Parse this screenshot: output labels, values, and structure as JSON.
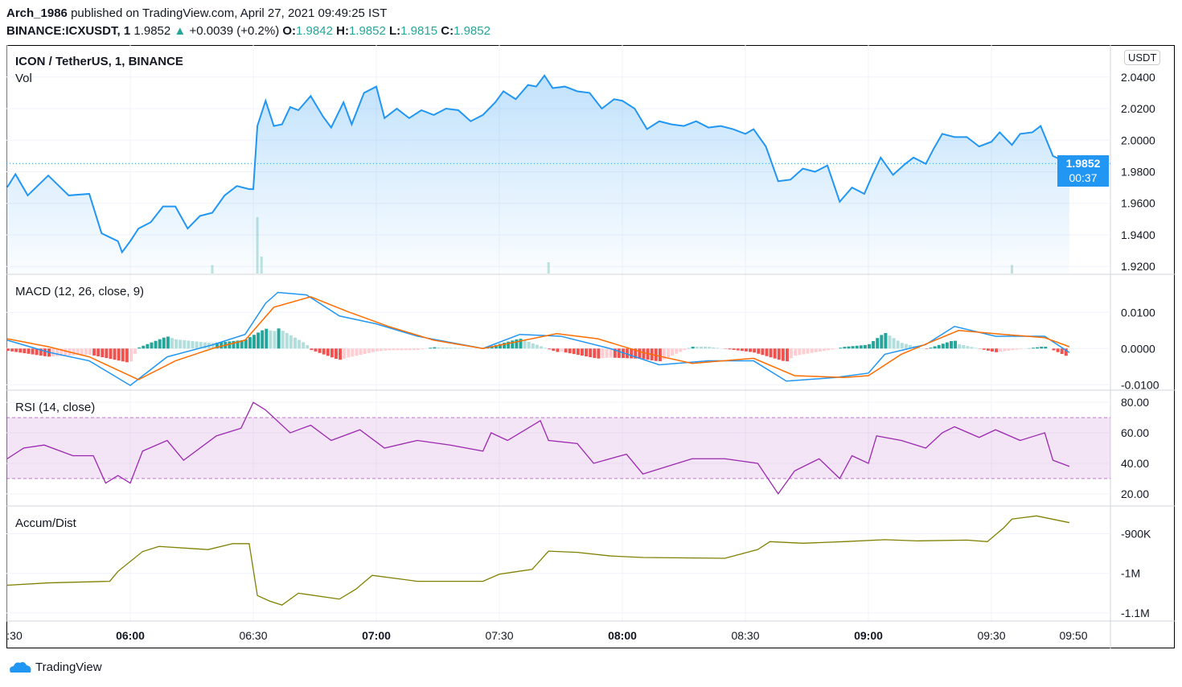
{
  "header": {
    "author": "Arch_1986",
    "published": "published on TradingView.com, April 27, 2021 09:49:25 IST",
    "symbol": "BINANCE:ICXUSDT, 1",
    "last": "1.9852",
    "change": "+0.0039 (+0.2%)",
    "up_icon": "triangle-up-icon",
    "o_label": "O:",
    "o": "1.9842",
    "h_label": "H:",
    "h": "1.9852",
    "l_label": "L:",
    "l": "1.9815",
    "c_label": "C:",
    "c": "1.9852"
  },
  "brand": "TradingView",
  "colors": {
    "price": "#2196f3",
    "macd": "#2196f3",
    "signal": "#ff6d00",
    "rsi": "#9c27b0",
    "ad": "#808000",
    "up": "#26a69a",
    "down": "#ef5350"
  },
  "chart_data": [
    {
      "type": "area",
      "title": "ICON / TetherUS, 1, BINANCE",
      "sublabel": "Vol",
      "currency": "USDT",
      "ylim": [
        1.915,
        2.045
      ],
      "yticks": [
        "2.0400",
        "2.0200",
        "2.0000",
        "1.9800",
        "1.9600",
        "1.9400",
        "1.9200"
      ],
      "last_price": "1.9852",
      "countdown": "00:37",
      "x": [
        "05:30",
        "05:32",
        "05:35",
        "05:40",
        "05:45",
        "05:50",
        "05:53",
        "05:57",
        "05:58",
        "06:00",
        "06:02",
        "06:05",
        "06:08",
        "06:11",
        "06:14",
        "06:17",
        "06:20",
        "06:23",
        "06:26",
        "06:29",
        "06:30",
        "06:31",
        "06:33",
        "06:35",
        "06:37",
        "06:39",
        "06:41",
        "06:44",
        "06:47",
        "06:49",
        "06:52",
        "06:54",
        "06:57",
        "07:00",
        "07:02",
        "07:05",
        "07:08",
        "07:11",
        "07:14",
        "07:17",
        "07:20",
        "07:23",
        "07:26",
        "07:29",
        "07:31",
        "07:34",
        "07:37",
        "07:39",
        "07:41",
        "07:43",
        "07:46",
        "07:49",
        "07:52",
        "07:55",
        "07:58",
        "08:00",
        "08:03",
        "08:06",
        "08:09",
        "08:12",
        "08:15",
        "08:18",
        "08:21",
        "08:24",
        "08:27",
        "08:30",
        "08:32",
        "08:35",
        "08:38",
        "08:41",
        "08:44",
        "08:47",
        "08:50",
        "08:53",
        "08:56",
        "08:59",
        "09:01",
        "09:03",
        "09:06",
        "09:09",
        "09:11",
        "09:14",
        "09:16",
        "09:18",
        "09:21",
        "09:24",
        "09:27",
        "09:30",
        "09:32",
        "09:35",
        "09:37",
        "09:40",
        "09:42",
        "09:45",
        "09:49"
      ],
      "values": [
        1.9702,
        1.9785,
        1.965,
        1.9776,
        1.965,
        1.966,
        1.941,
        1.936,
        1.929,
        1.936,
        1.944,
        1.948,
        1.958,
        1.958,
        1.944,
        1.952,
        1.954,
        1.965,
        1.971,
        1.969,
        1.969,
        2.009,
        2.025,
        2.009,
        2.01,
        2.021,
        2.019,
        2.028,
        2.015,
        2.008,
        2.024,
        2.01,
        2.03,
        2.034,
        2.014,
        2.02,
        2.014,
        2.019,
        2.016,
        2.02,
        2.019,
        2.012,
        2.016,
        2.024,
        2.031,
        2.026,
        2.035,
        2.034,
        2.041,
        2.033,
        2.034,
        2.031,
        2.03,
        2.02,
        2.026,
        2.025,
        2.02,
        2.007,
        2.012,
        2.01,
        2.009,
        2.012,
        2.008,
        2.009,
        2.007,
        2.004,
        2.007,
        1.996,
        1.974,
        1.975,
        1.982,
        1.98,
        1.984,
        1.961,
        1.97,
        1.966,
        1.978,
        1.989,
        1.978,
        1.985,
        1.989,
        1.985,
        1.995,
        2.004,
        2.002,
        2.002,
        1.996,
        1.999,
        2.005,
        1.997,
        2.004,
        2.005,
        2.009,
        1.99,
        1.9852
      ],
      "volume_spikes_relative": [
        [
          "06:31",
          1.0
        ],
        [
          "06:32",
          0.3
        ],
        [
          "07:42",
          0.2
        ],
        [
          "09:35",
          0.15
        ],
        [
          "06:20",
          0.15
        ]
      ]
    },
    {
      "type": "line",
      "title": "MACD (12, 26, close, 9)",
      "ylim": [
        -0.0115,
        0.0205
      ],
      "yticks": [
        "0.0100",
        "0.0000",
        "-0.0100"
      ],
      "series": [
        {
          "key": "macd",
          "points": [
            [
              "05:30",
              0.0023
            ],
            [
              "05:40",
              -0.001
            ],
            [
              "05:50",
              -0.0034
            ],
            [
              "06:00",
              -0.0102
            ],
            [
              "06:09",
              -0.0023
            ],
            [
              "06:20",
              0.001
            ],
            [
              "06:28",
              0.0039
            ],
            [
              "06:33",
              0.0125
            ],
            [
              "06:36",
              0.0155
            ],
            [
              "06:43",
              0.0148
            ],
            [
              "06:51",
              0.009
            ],
            [
              "07:00",
              0.0068
            ],
            [
              "07:10",
              0.0034
            ],
            [
              "07:26",
              0
            ],
            [
              "07:35",
              0.0039
            ],
            [
              "07:45",
              0.0034
            ],
            [
              "07:57",
              0
            ],
            [
              "08:09",
              -0.0045
            ],
            [
              "08:21",
              -0.0034
            ],
            [
              "08:32",
              -0.0034
            ],
            [
              "08:40",
              -0.009
            ],
            [
              "08:52",
              -0.008
            ],
            [
              "09:00",
              -0.0068
            ],
            [
              "09:04",
              -0.0016
            ],
            [
              "09:14",
              0.0011
            ],
            [
              "09:21",
              0.0061
            ],
            [
              "09:31",
              0.0034
            ],
            [
              "09:43",
              0.0034
            ],
            [
              "09:49",
              -0.0011
            ]
          ]
        },
        {
          "key": "signal",
          "points": [
            [
              "05:30",
              0.0027
            ],
            [
              "05:40",
              0.0005
            ],
            [
              "05:50",
              -0.0023
            ],
            [
              "06:02",
              -0.0086
            ],
            [
              "06:11",
              -0.0034
            ],
            [
              "06:20",
              0
            ],
            [
              "06:28",
              0.0023
            ],
            [
              "06:35",
              0.0114
            ],
            [
              "06:44",
              0.0143
            ],
            [
              "06:53",
              0.0102
            ],
            [
              "07:03",
              0.0061
            ],
            [
              "07:14",
              0.0023
            ],
            [
              "07:26",
              0
            ],
            [
              "07:44",
              0.0041
            ],
            [
              "07:54",
              0.0027
            ],
            [
              "08:05",
              -0.0011
            ],
            [
              "08:17",
              -0.0041
            ],
            [
              "08:32",
              -0.0027
            ],
            [
              "08:42",
              -0.0075
            ],
            [
              "08:54",
              -0.008
            ],
            [
              "09:00",
              -0.0075
            ],
            [
              "09:08",
              -0.0016
            ],
            [
              "09:22",
              0.005
            ],
            [
              "09:33",
              0.0039
            ],
            [
              "09:43",
              0.003
            ],
            [
              "09:49",
              0.0005
            ]
          ]
        }
      ]
    },
    {
      "type": "line",
      "title": "RSI (14, close)",
      "ylim": [
        12,
        88
      ],
      "band": [
        30,
        70
      ],
      "yticks": [
        "80.00",
        "60.00",
        "40.00",
        "20.00"
      ],
      "points": [
        [
          "05:30",
          43
        ],
        [
          "05:34",
          50
        ],
        [
          "05:39",
          52
        ],
        [
          "05:46",
          45
        ],
        [
          "05:51",
          45
        ],
        [
          "05:54",
          27
        ],
        [
          "05:57",
          32
        ],
        [
          "06:00",
          27
        ],
        [
          "06:03",
          48
        ],
        [
          "06:09",
          55
        ],
        [
          "06:13",
          42
        ],
        [
          "06:21",
          58
        ],
        [
          "06:27",
          63
        ],
        [
          "06:30",
          80
        ],
        [
          "06:33",
          75
        ],
        [
          "06:39",
          60
        ],
        [
          "06:44",
          65
        ],
        [
          "06:49",
          55
        ],
        [
          "06:56",
          62
        ],
        [
          "07:02",
          50
        ],
        [
          "07:10",
          55
        ],
        [
          "07:18",
          52
        ],
        [
          "07:26",
          48
        ],
        [
          "07:28",
          60
        ],
        [
          "07:32",
          55
        ],
        [
          "07:40",
          68
        ],
        [
          "07:42",
          55
        ],
        [
          "07:49",
          53
        ],
        [
          "07:53",
          40
        ],
        [
          "08:01",
          46
        ],
        [
          "08:05",
          33
        ],
        [
          "08:17",
          43
        ],
        [
          "08:25",
          43
        ],
        [
          "08:33",
          40
        ],
        [
          "08:38",
          20
        ],
        [
          "08:42",
          35
        ],
        [
          "08:48",
          43
        ],
        [
          "08:53",
          30
        ],
        [
          "08:56",
          45
        ],
        [
          "09:00",
          40
        ],
        [
          "09:02",
          58
        ],
        [
          "09:08",
          55
        ],
        [
          "09:14",
          50
        ],
        [
          "09:18",
          60
        ],
        [
          "09:21",
          64
        ],
        [
          "09:27",
          57
        ],
        [
          "09:31",
          62
        ],
        [
          "09:37",
          55
        ],
        [
          "09:43",
          60
        ],
        [
          "09:45",
          42
        ],
        [
          "09:49",
          38
        ]
      ]
    },
    {
      "type": "line",
      "title": "Accum/Dist",
      "ylim": [
        -1100000,
        -830000
      ],
      "yticks": [
        "-900K",
        "-1M",
        "-1.1M"
      ],
      "points": [
        [
          "05:30",
          -1030000
        ],
        [
          "05:40",
          -1024000
        ],
        [
          "05:55",
          -1020000
        ],
        [
          "05:57",
          -995000
        ],
        [
          "06:03",
          -945000
        ],
        [
          "06:07",
          -932000
        ],
        [
          "06:19",
          -940000
        ],
        [
          "06:25",
          -925000
        ],
        [
          "06:29",
          -925000
        ],
        [
          "06:31",
          -1056000
        ],
        [
          "06:34",
          -1070000
        ],
        [
          "06:37",
          -1080000
        ],
        [
          "06:41",
          -1050000
        ],
        [
          "06:51",
          -1065000
        ],
        [
          "06:55",
          -1040000
        ],
        [
          "06:59",
          -1005000
        ],
        [
          "07:10",
          -1020000
        ],
        [
          "07:26",
          -1020000
        ],
        [
          "07:30",
          -1002000
        ],
        [
          "07:38",
          -990000
        ],
        [
          "07:42",
          -944000
        ],
        [
          "07:49",
          -947000
        ],
        [
          "07:57",
          -956000
        ],
        [
          "08:05",
          -960000
        ],
        [
          "08:25",
          -962000
        ],
        [
          "08:33",
          -940000
        ],
        [
          "08:36",
          -920000
        ],
        [
          "08:44",
          -924000
        ],
        [
          "08:54",
          -920000
        ],
        [
          "09:04",
          -915000
        ],
        [
          "09:12",
          -918000
        ],
        [
          "09:24",
          -916000
        ],
        [
          "09:29",
          -920000
        ],
        [
          "09:33",
          -885000
        ],
        [
          "09:35",
          -863000
        ],
        [
          "09:41",
          -855000
        ],
        [
          "09:49",
          -872000
        ]
      ]
    }
  ],
  "time_axis": [
    {
      "t": ":30",
      "bold": false
    },
    {
      "t": "06:00",
      "bold": true
    },
    {
      "t": "06:30",
      "bold": false
    },
    {
      "t": "07:00",
      "bold": true
    },
    {
      "t": "07:30",
      "bold": false
    },
    {
      "t": "08:00",
      "bold": true
    },
    {
      "t": "08:30",
      "bold": false
    },
    {
      "t": "09:00",
      "bold": true
    },
    {
      "t": "09:30",
      "bold": false
    },
    {
      "t": "09:50",
      "bold": false
    }
  ]
}
